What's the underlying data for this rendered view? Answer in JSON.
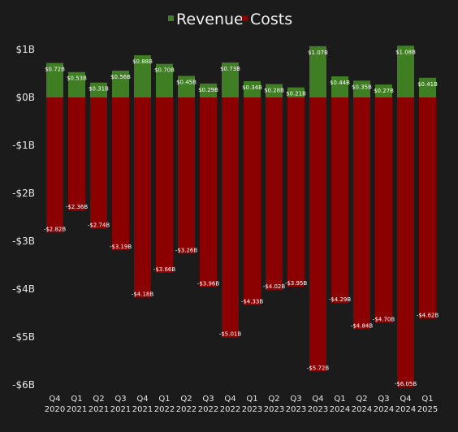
{
  "chart_data": {
    "type": "bar",
    "stacked": true,
    "title": "",
    "xlabel": "",
    "ylabel": "",
    "categories": [
      [
        "Q4",
        "2020"
      ],
      [
        "Q1",
        "2021"
      ],
      [
        "Q2",
        "2021"
      ],
      [
        "Q3",
        "2021"
      ],
      [
        "Q4",
        "2021"
      ],
      [
        "Q1",
        "2022"
      ],
      [
        "Q2",
        "2022"
      ],
      [
        "Q3",
        "2022"
      ],
      [
        "Q4",
        "2022"
      ],
      [
        "Q1",
        "2023"
      ],
      [
        "Q2",
        "2023"
      ],
      [
        "Q3",
        "2023"
      ],
      [
        "Q4",
        "2023"
      ],
      [
        "Q1",
        "2024"
      ],
      [
        "Q2",
        "2024"
      ],
      [
        "Q3",
        "2024"
      ],
      [
        "Q4",
        "2024"
      ],
      [
        "Q1",
        "2025"
      ]
    ],
    "series": [
      {
        "name": "Revenue",
        "color": "#3f7e23",
        "values": [
          0.72,
          0.53,
          0.31,
          0.56,
          0.88,
          0.7,
          0.45,
          0.29,
          0.73,
          0.34,
          0.28,
          0.21,
          1.07,
          0.44,
          0.35,
          0.27,
          1.08,
          0.41
        ],
        "labels": [
          "$0.72B",
          "$0.53B",
          "$0.31B",
          "$0.56B",
          "$0.88B",
          "$0.70B",
          "$0.45B",
          "$0.29B",
          "$0.73B",
          "$0.34B",
          "$0.28B",
          "$0.21B",
          "$1.07B",
          "$0.44B",
          "$0.35B",
          "$0.27B",
          "$1.08B",
          "$0.41B"
        ]
      },
      {
        "name": "Costs",
        "color": "#8b0000",
        "values": [
          -2.82,
          -2.36,
          -2.74,
          -3.19,
          -4.18,
          -3.66,
          -3.26,
          -3.96,
          -5.01,
          -4.33,
          -4.02,
          -3.95,
          -5.72,
          -4.29,
          -4.84,
          -4.7,
          -6.05,
          -4.62
        ],
        "labels": [
          "-$2.82B",
          "-$2.36B",
          "-$2.74B",
          "-$3.19B",
          "-$4.18B",
          "-$3.66B",
          "-$3.26B",
          "-$3.96B",
          "-$5.01B",
          "-$4.33B",
          "-$4.02B",
          "-$3.95B",
          "-$5.72B",
          "-$4.29B",
          "-$4.84B",
          "-$4.70B",
          "-$6.05B",
          "-$4.62B"
        ]
      }
    ],
    "ylim": [
      -6,
      1
    ],
    "yticks": [
      {
        "value": 1,
        "label": "$1B"
      },
      {
        "value": 0,
        "label": "$0B"
      },
      {
        "value": -1,
        "label": "-$1B"
      },
      {
        "value": -2,
        "label": "-$2B"
      },
      {
        "value": -3,
        "label": "-$3B"
      },
      {
        "value": -4,
        "label": "-$4B"
      },
      {
        "value": -5,
        "label": "-$5B"
      },
      {
        "value": -6,
        "label": "-$6B"
      }
    ],
    "grid": false,
    "legend_position": "top-center",
    "background": "#1b1b1b"
  }
}
